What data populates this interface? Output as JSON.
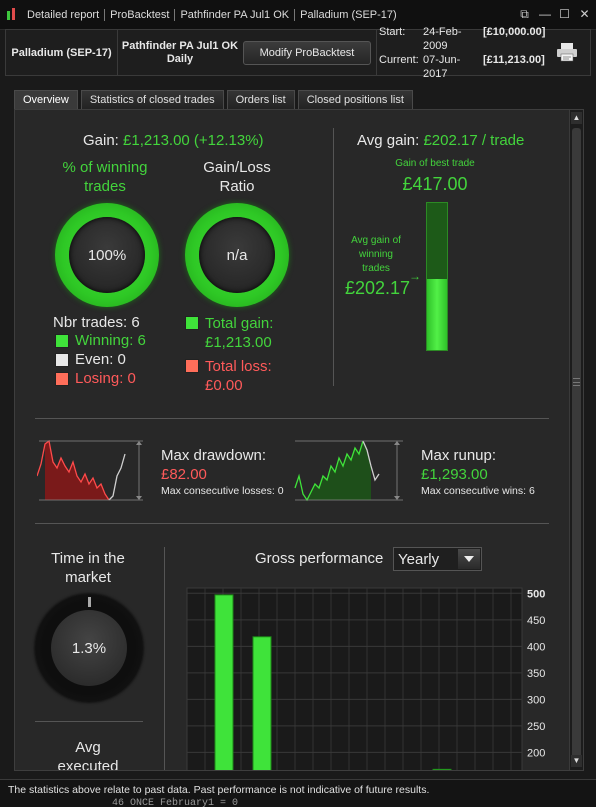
{
  "titlebar": {
    "segments": [
      "Detailed report",
      "ProBacktest",
      "Pathfinder PA Jul1 OK",
      "Palladium (SEP-17)"
    ],
    "controls": [
      "⧉",
      "—",
      "☐",
      "✕"
    ]
  },
  "header": {
    "instrument": "Palladium (SEP-17)",
    "strategy_name": "Pathfinder PA Jul1 OK",
    "timeframe": "Daily",
    "modify_button": "Modify ProBacktest",
    "start_label": "Start:",
    "start_date": "24-Feb-2009",
    "start_amount": "[£10,000.00]",
    "current_label": "Current:",
    "current_date": "07-Jun-2017",
    "current_amount": "[£11,213.00]"
  },
  "tabs": [
    {
      "label": "Overview",
      "active": true
    },
    {
      "label": "Statistics of closed trades",
      "active": false
    },
    {
      "label": "Orders list",
      "active": false
    },
    {
      "label": "Closed positions list",
      "active": false
    }
  ],
  "overview": {
    "gain_label": "Gain:",
    "gain_value": "£1,213.00 (+12.13%)",
    "pct_winning_label_1": "% of winning",
    "pct_winning_label_2": "trades",
    "pct_winning_value": "100%",
    "gain_loss_label_1": "Gain/Loss",
    "gain_loss_label_2": "Ratio",
    "gain_loss_value": "n/a",
    "nbr_trades": "Nbr trades: 6",
    "winning": "Winning: 6",
    "even": "Even: 0",
    "losing": "Losing: 0",
    "total_gain_label": "Total gain:",
    "total_gain_value": "£1,213.00",
    "total_loss_label": "Total loss:",
    "total_loss_value": "£0.00",
    "avg_gain_label": "Avg gain:",
    "avg_gain_value": "£202.17 / trade",
    "best_trade_label": "Gain of best trade",
    "best_trade_value": "£417.00",
    "avg_win_label_1": "Avg gain of",
    "avg_win_label_2": "winning",
    "avg_win_label_3": "trades",
    "avg_win_value": "£202.17",
    "avg_to_best_ratio": 0.485,
    "max_drawdown_label": "Max drawdown:",
    "max_drawdown_value": "£82.00",
    "max_consec_losses": "Max consecutive losses: 0",
    "max_runup_label": "Max runup:",
    "max_runup_value": "£1,293.00",
    "max_consec_wins": "Max consecutive wins: 6",
    "time_in_market_label_1": "Time in the",
    "time_in_market_label_2": "market",
    "time_in_market_value": "1.3%",
    "avg_executed_label_1": "Avg",
    "avg_executed_label_2": "executed",
    "gross_perf_label": "Gross performance",
    "gross_perf_period": "Yearly"
  },
  "colors": {
    "accent_green": "#43d43c",
    "loss_red": "#ff5a5a",
    "bar_green": "#3fe33a"
  },
  "chart_data": {
    "type": "bar",
    "values": [
      497,
      418,
      168
    ],
    "ylim": [
      163,
      510
    ],
    "y_ticks": [
      "500",
      "450",
      "400",
      "350",
      "300",
      "250",
      "200"
    ],
    "grid": true
  },
  "footer": {
    "disclaimer": "The statistics above relate to past data. Past performance is not indicative of future results.",
    "code_line": "46 ONCE February1 = 0"
  }
}
